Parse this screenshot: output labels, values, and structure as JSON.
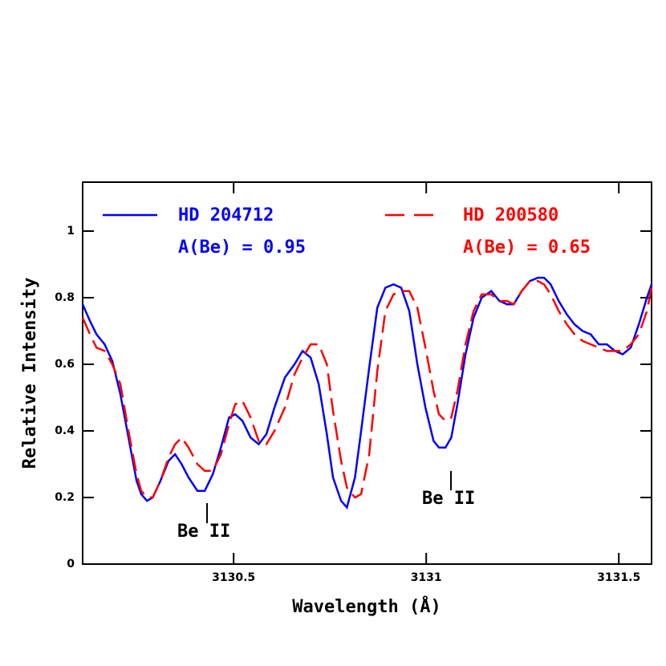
{
  "chart_data": {
    "type": "line",
    "xlabel": "Wavelength (Å)",
    "ylabel": "Relative Intensity",
    "xlim": [
      3130.108,
      3131.585
    ],
    "ylim": [
      0,
      1.147
    ],
    "xticks": [
      3130.5,
      3131,
      3131.5
    ],
    "yticks": [
      0,
      0.2,
      0.4,
      0.6,
      0.8,
      1
    ],
    "x": [
      3130.108,
      3130.127,
      3130.144,
      3130.165,
      3130.185,
      3130.206,
      3130.227,
      3130.248,
      3130.26,
      3130.275,
      3130.29,
      3130.31,
      3130.331,
      3130.348,
      3130.365,
      3130.383,
      3130.406,
      3130.425,
      3130.446,
      3130.467,
      3130.488,
      3130.504,
      3130.523,
      3130.544,
      3130.565,
      3130.585,
      3130.606,
      3130.633,
      3130.658,
      3130.679,
      3130.7,
      3130.721,
      3130.742,
      3130.758,
      3130.779,
      3130.794,
      3130.815,
      3130.831,
      3130.852,
      3130.873,
      3130.894,
      3130.915,
      3130.935,
      3130.956,
      3130.977,
      3130.998,
      3131.019,
      3131.033,
      3131.05,
      3131.065,
      3131.081,
      3131.102,
      3131.123,
      3131.144,
      3131.169,
      3131.19,
      3131.21,
      3131.227,
      3131.248,
      3131.269,
      3131.29,
      3131.306,
      3131.323,
      3131.344,
      3131.365,
      3131.385,
      3131.406,
      3131.427,
      3131.448,
      3131.469,
      3131.49,
      3131.51,
      3131.531,
      3131.552,
      3131.573,
      3131.585
    ],
    "series": [
      {
        "name": "HD 204712",
        "color": "#0000ff",
        "dash": false,
        "values": [
          0.78,
          0.73,
          0.69,
          0.66,
          0.61,
          0.51,
          0.38,
          0.25,
          0.21,
          0.19,
          0.2,
          0.25,
          0.31,
          0.33,
          0.3,
          0.26,
          0.22,
          0.22,
          0.27,
          0.35,
          0.44,
          0.45,
          0.43,
          0.38,
          0.36,
          0.39,
          0.47,
          0.56,
          0.6,
          0.64,
          0.62,
          0.54,
          0.39,
          0.26,
          0.19,
          0.17,
          0.26,
          0.4,
          0.59,
          0.77,
          0.83,
          0.84,
          0.83,
          0.76,
          0.6,
          0.47,
          0.37,
          0.35,
          0.35,
          0.38,
          0.48,
          0.63,
          0.74,
          0.8,
          0.82,
          0.79,
          0.78,
          0.78,
          0.82,
          0.85,
          0.86,
          0.86,
          0.84,
          0.79,
          0.75,
          0.72,
          0.7,
          0.69,
          0.66,
          0.66,
          0.64,
          0.63,
          0.65,
          0.72,
          0.8,
          0.84
        ]
      },
      {
        "name": "HD 200580",
        "color": "#ff0000",
        "dash": true,
        "values": [
          0.74,
          0.69,
          0.65,
          0.64,
          0.6,
          0.54,
          0.4,
          0.27,
          0.22,
          0.2,
          0.2,
          0.25,
          0.32,
          0.36,
          0.38,
          0.35,
          0.3,
          0.28,
          0.28,
          0.33,
          0.42,
          0.48,
          0.49,
          0.44,
          0.37,
          0.36,
          0.4,
          0.47,
          0.57,
          0.62,
          0.66,
          0.66,
          0.6,
          0.46,
          0.31,
          0.23,
          0.2,
          0.21,
          0.33,
          0.58,
          0.76,
          0.81,
          0.82,
          0.82,
          0.77,
          0.65,
          0.52,
          0.45,
          0.43,
          0.44,
          0.52,
          0.66,
          0.76,
          0.81,
          0.81,
          0.79,
          0.79,
          0.78,
          0.82,
          0.85,
          0.85,
          0.84,
          0.81,
          0.76,
          0.72,
          0.69,
          0.67,
          0.66,
          0.65,
          0.64,
          0.64,
          0.64,
          0.66,
          0.69,
          0.76,
          0.83
        ]
      }
    ],
    "annotations": [
      "A(Be) = 0.95",
      "A(Be) = 0.65",
      "Be II",
      "Be II"
    ]
  }
}
